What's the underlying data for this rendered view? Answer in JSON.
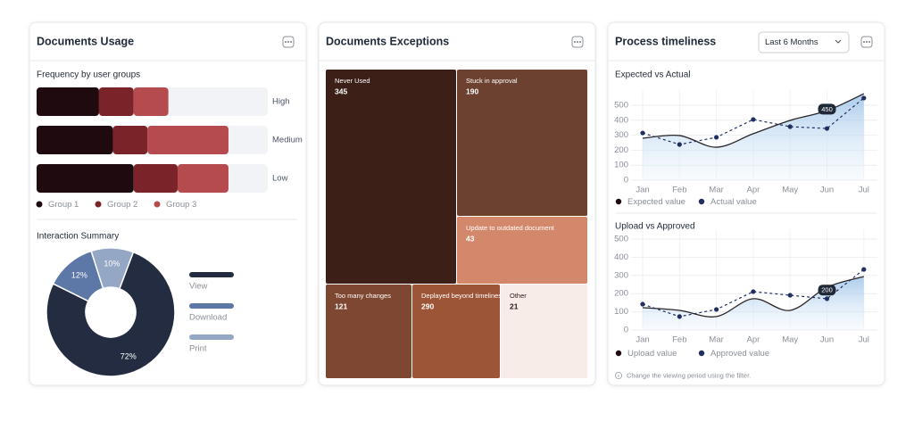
{
  "panels": [
    {
      "title": "Documents Usage"
    },
    {
      "title": "Documents Exceptions"
    },
    {
      "title": "Process timeliness",
      "filter": "Last 6 Months",
      "note": "Change the viewing period using the filter."
    }
  ],
  "chart_data": [
    {
      "type": "stacked-bar",
      "orientation": "horizontal",
      "title": "Frequency by user groups",
      "categories": [
        "High",
        "Medium",
        "Low"
      ],
      "xlim": [
        0,
        100
      ],
      "series": [
        {
          "name": "Group 1",
          "color": "#1f0b0f",
          "values": [
            27,
            33,
            42
          ]
        },
        {
          "name": "Group 2",
          "color": "#7a2329",
          "values": [
            15,
            15,
            19
          ]
        },
        {
          "name": "Group 3",
          "color": "#b54b4f",
          "values": [
            15,
            35,
            22
          ]
        }
      ]
    },
    {
      "type": "pie",
      "title": "Interaction Summary",
      "hole": true,
      "categories": [
        "View",
        "Download",
        "Print"
      ],
      "values": [
        72,
        12,
        10
      ],
      "value_labels": [
        "72%",
        "12%",
        "10%"
      ],
      "colors": [
        "#232c40",
        "#5d77a7",
        "#94a7c5"
      ]
    },
    {
      "type": "treemap",
      "categories": [
        "Never Used",
        "Stuck in approval",
        "Update to outdated document",
        "Too many changes",
        "Deplayed beyond timelines",
        "Other"
      ],
      "values": [
        345,
        190,
        43,
        121,
        290,
        21
      ],
      "colors": [
        "#3c2018",
        "#6c4130",
        "#d4886b",
        "#7e4731",
        "#9d5537",
        "#f7ece7"
      ]
    },
    {
      "type": "line",
      "title": "Expected vs Actual",
      "categories": [
        "Jan",
        "Feb",
        "Mar",
        "Apr",
        "May",
        "Jun",
        "Jul"
      ],
      "ylim": [
        0,
        600
      ],
      "yticks": [
        0,
        100,
        200,
        300,
        400,
        500
      ],
      "grid": true,
      "annotation": 450,
      "series": [
        {
          "name": "Expected value",
          "color": "#2a2427",
          "style": "smooth-area",
          "values": [
            280,
            298,
            220,
            310,
            399,
            464,
            577
          ]
        },
        {
          "name": "Actual value",
          "color": "#1f3060",
          "style": "dashed-dots",
          "values": [
            315,
            238,
            286,
            405,
            357,
            345,
            548
          ]
        }
      ]
    },
    {
      "type": "line",
      "title": "Upload vs Approved",
      "categories": [
        "Jan",
        "Feb",
        "Mar",
        "Apr",
        "May",
        "Jun",
        "Jul"
      ],
      "ylim": [
        0,
        550
      ],
      "yticks": [
        0,
        100,
        200,
        300,
        400,
        500
      ],
      "grid": true,
      "annotation": 200,
      "series": [
        {
          "name": "Upload value",
          "color": "#2a2427",
          "style": "smooth-area",
          "values": [
            123,
            108,
            74,
            172,
            108,
            235,
            294
          ]
        },
        {
          "name": "Approved value",
          "color": "#1f3060",
          "style": "dashed-dots",
          "values": [
            142,
            74,
            113,
            211,
            191,
            172,
            333
          ]
        }
      ]
    }
  ]
}
